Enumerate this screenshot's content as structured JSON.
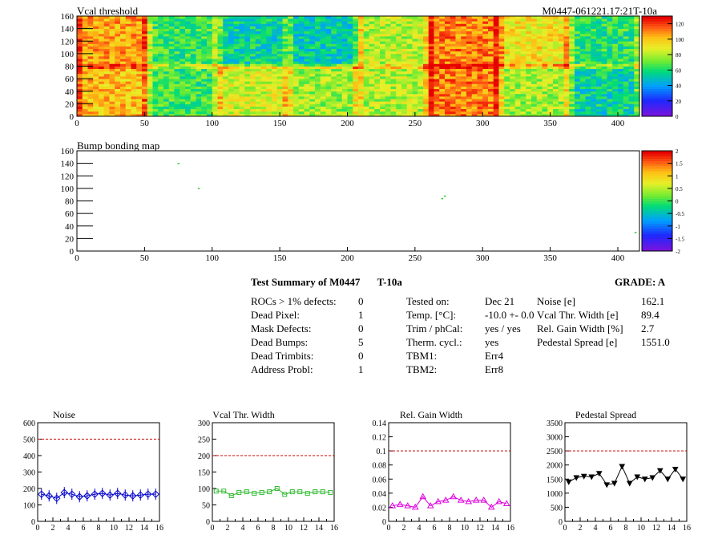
{
  "header": {
    "title": "Vcal threshold",
    "module_id": "M0447-061221.17:21T-10a"
  },
  "chart_data": [
    {
      "type": "heatmap",
      "title": "Vcal threshold",
      "xlim": [
        0,
        416
      ],
      "ylim": [
        0,
        160
      ],
      "x_ticks": [
        0,
        50,
        100,
        150,
        200,
        250,
        300,
        350,
        400
      ],
      "y_ticks": [
        0,
        20,
        40,
        60,
        80,
        100,
        120,
        140,
        160
      ],
      "colorbar": {
        "min": 0,
        "max": 130,
        "ticks": [
          0,
          20,
          40,
          60,
          80,
          100,
          120
        ]
      },
      "roc_blocks_top": [
        {
          "x0": 0,
          "x1": 52,
          "level": 0.82
        },
        {
          "x0": 52,
          "x1": 104,
          "level": 0.5
        },
        {
          "x0": 104,
          "x1": 156,
          "level": 0.42
        },
        {
          "x0": 156,
          "x1": 208,
          "level": 0.4
        },
        {
          "x0": 208,
          "x1": 260,
          "level": 0.62
        },
        {
          "x0": 260,
          "x1": 312,
          "level": 0.86
        },
        {
          "x0": 312,
          "x1": 364,
          "level": 0.72
        },
        {
          "x0": 364,
          "x1": 416,
          "level": 0.48
        }
      ],
      "roc_blocks_bottom": [
        {
          "x0": 0,
          "x1": 52,
          "level": 0.78
        },
        {
          "x0": 52,
          "x1": 104,
          "level": 0.5
        },
        {
          "x0": 104,
          "x1": 156,
          "level": 0.66
        },
        {
          "x0": 156,
          "x1": 208,
          "level": 0.6
        },
        {
          "x0": 208,
          "x1": 260,
          "level": 0.62
        },
        {
          "x0": 260,
          "x1": 312,
          "level": 0.86
        },
        {
          "x0": 312,
          "x1": 364,
          "level": 0.6
        },
        {
          "x0": 364,
          "x1": 416,
          "level": 0.42
        }
      ]
    },
    {
      "type": "heatmap",
      "title": "Bump bonding map",
      "xlim": [
        0,
        416
      ],
      "ylim": [
        0,
        160
      ],
      "x_ticks": [
        0,
        50,
        100,
        150,
        200,
        250,
        300,
        350,
        400
      ],
      "y_ticks": [
        0,
        20,
        40,
        60,
        80,
        100,
        120,
        140,
        160
      ],
      "colorbar": {
        "min": -2,
        "max": 2,
        "ticks": [
          "2",
          "1.5",
          "1",
          "0.5",
          "0",
          "-0.5",
          "-1",
          "-1.5",
          "-2"
        ]
      },
      "points": [
        [
          75,
          140
        ],
        [
          90,
          100
        ],
        [
          270,
          84
        ],
        [
          272,
          88
        ],
        [
          413,
          30
        ]
      ]
    },
    {
      "type": "line",
      "title": "Noise",
      "x": [
        0,
        1,
        2,
        3,
        4,
        5,
        6,
        7,
        8,
        9,
        10,
        11,
        12,
        13,
        14,
        15
      ],
      "values": [
        165,
        155,
        140,
        175,
        165,
        150,
        155,
        165,
        170,
        160,
        170,
        160,
        155,
        160,
        165,
        165
      ],
      "xlim": [
        0,
        16
      ],
      "ylim": [
        0,
        600
      ],
      "y_ticks": [
        0,
        100,
        200,
        300,
        400,
        500,
        600
      ],
      "x_ticks": [
        0,
        2,
        4,
        6,
        8,
        10,
        12,
        14,
        16
      ],
      "threshold": 500,
      "color": "#0000cc"
    },
    {
      "type": "line",
      "title": "Vcal Thr. Width",
      "x": [
        0,
        1,
        2,
        3,
        4,
        5,
        6,
        7,
        8,
        9,
        10,
        11,
        12,
        13,
        14,
        15
      ],
      "values": [
        92,
        92,
        78,
        88,
        90,
        85,
        88,
        90,
        100,
        82,
        90,
        90,
        85,
        90,
        90,
        88
      ],
      "xlim": [
        0,
        16
      ],
      "ylim": [
        0,
        300
      ],
      "y_ticks": [
        0,
        50,
        100,
        150,
        200,
        250,
        300
      ],
      "x_ticks": [
        0,
        2,
        4,
        6,
        8,
        10,
        12,
        14,
        16
      ],
      "threshold": 200,
      "color": "#33bb33"
    },
    {
      "type": "line",
      "title": "Rel. Gain Width",
      "x": [
        0,
        1,
        2,
        3,
        4,
        5,
        6,
        7,
        8,
        9,
        10,
        11,
        12,
        13,
        14,
        15
      ],
      "values": [
        0.022,
        0.024,
        0.022,
        0.02,
        0.035,
        0.022,
        0.028,
        0.03,
        0.035,
        0.03,
        0.028,
        0.03,
        0.03,
        0.02,
        0.028,
        0.025
      ],
      "xlim": [
        0,
        16
      ],
      "ylim": [
        0,
        0.14
      ],
      "y_ticks": [
        "0",
        "0.02",
        "0.04",
        "0.06",
        "0.08",
        "0.1",
        "0.12",
        "0.14"
      ],
      "x_ticks": [
        0,
        2,
        4,
        6,
        8,
        10,
        12,
        14,
        16
      ],
      "threshold": 0.1,
      "color": "#dd00dd"
    },
    {
      "type": "line",
      "title": "Pedestal Spread",
      "x": [
        0,
        1,
        2,
        3,
        4,
        5,
        6,
        7,
        8,
        9,
        10,
        11,
        12,
        13,
        14,
        15
      ],
      "values": [
        1400,
        1550,
        1600,
        1580,
        1700,
        1300,
        1350,
        1950,
        1350,
        1580,
        1500,
        1550,
        1800,
        1500,
        1850,
        1500
      ],
      "xlim": [
        0,
        16
      ],
      "ylim": [
        0,
        3500
      ],
      "y_ticks": [
        0,
        500,
        1000,
        1500,
        2000,
        2500,
        3000,
        3500
      ],
      "x_ticks": [
        0,
        2,
        4,
        6,
        8,
        10,
        12,
        14,
        16
      ],
      "threshold": 2500,
      "color": "#000000"
    }
  ],
  "summary": {
    "title": "Test Summary of M0447",
    "temp_label": "T-10a",
    "grade": "GRADE:  A",
    "left": [
      {
        "label": "ROCs > 1% defects:",
        "value": "0"
      },
      {
        "label": "Dead Pixel:",
        "value": "1"
      },
      {
        "label": "Mask Defects:",
        "value": "0"
      },
      {
        "label": "Dead Bumps:",
        "value": "5"
      },
      {
        "label": "Dead Trimbits:",
        "value": "0"
      },
      {
        "label": "Address Probl:",
        "value": "1"
      }
    ],
    "middle": [
      {
        "label": "Tested on:",
        "value": "Dec 21"
      },
      {
        "label": "Temp. [°C]:",
        "value": "-10.0 +- 0.0"
      },
      {
        "label": "Trim / phCal:",
        "value": "yes / yes"
      },
      {
        "label": "Therm. cycl.:",
        "value": "yes"
      },
      {
        "label": "TBM1:",
        "value": "Err4"
      },
      {
        "label": "TBM2:",
        "value": "Err8"
      }
    ],
    "right": [
      {
        "label": "Noise [e]",
        "value": "162.1"
      },
      {
        "label": "Vcal Thr. Width [e]",
        "value": "89.4"
      },
      {
        "label": "Rel. Gain Width [%]",
        "value": "2.7"
      },
      {
        "label": "Pedestal Spread [e]",
        "value": "1551.0"
      }
    ]
  },
  "colors": {
    "threshold_line": "#cc0000",
    "frame": "#000000"
  }
}
